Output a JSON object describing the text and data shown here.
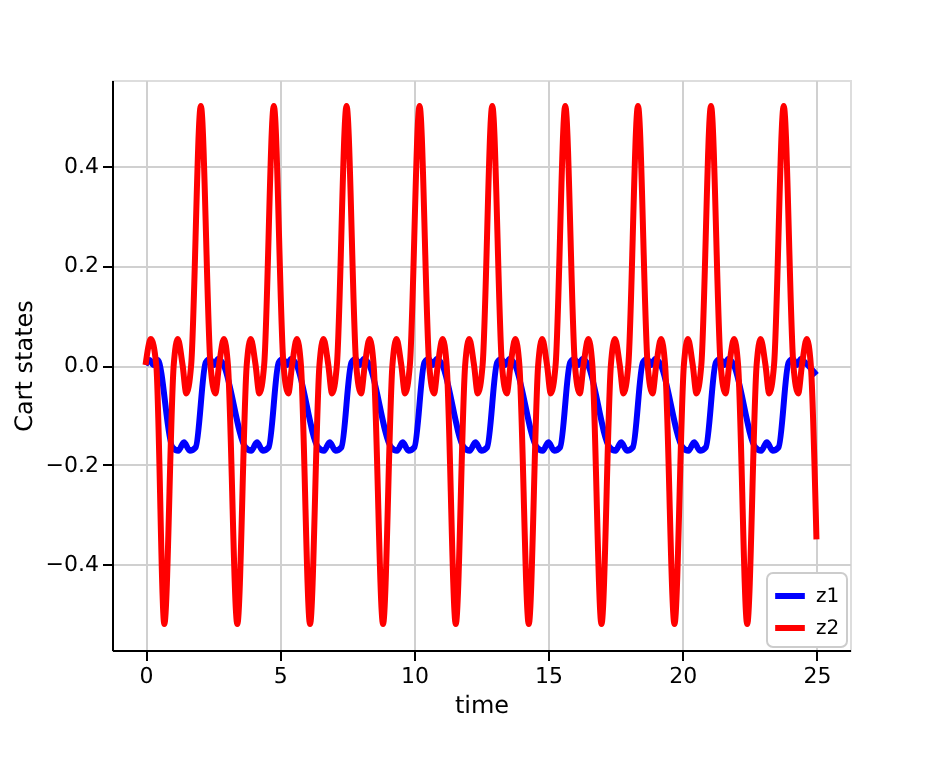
{
  "chart_data": {
    "type": "line",
    "xlabel": "time",
    "ylabel": "Cart states",
    "xlim": [
      -1.25,
      26.25
    ],
    "ylim": [
      -0.572,
      0.572
    ],
    "xticks": [
      0,
      5,
      10,
      15,
      20,
      25
    ],
    "yticks": [
      -0.4,
      -0.2,
      {
        "value": 0,
        "label": "0.0"
      },
      0.2,
      0.4
    ],
    "grid": true,
    "legend": "bottom right",
    "marker": "none",
    "line_style": "solid",
    "series": [
      {
        "name": "z1",
        "color": "#0000ff",
        "x": [
          0,
          0.15,
          0.3,
          0.45,
          1.0,
          1.22,
          1.43,
          1.65,
          1.87,
          2.24,
          2.4,
          2.55,
          2.7,
          2.86,
          3.72,
          3.94,
          4.15,
          4.37,
          4.59,
          4.96,
          5.12,
          5.27,
          5.42,
          5.58,
          6.43,
          6.65,
          6.86,
          7.08,
          7.3,
          7.67,
          7.83,
          7.98,
          8.13,
          8.29,
          9.15,
          9.37,
          9.58,
          9.8,
          10.02,
          10.39,
          10.55,
          10.7,
          10.85,
          11.01,
          11.86,
          12.08,
          12.29,
          12.51,
          12.73,
          13.1,
          13.26,
          13.41,
          13.56,
          13.72,
          14.58,
          14.8,
          15.01,
          15.23,
          15.45,
          15.82,
          15.98,
          16.13,
          16.28,
          16.44,
          17.29,
          17.51,
          17.72,
          17.94,
          18.16,
          18.53,
          18.69,
          18.84,
          18.99,
          19.15,
          20.01,
          20.23,
          20.44,
          20.66,
          20.88,
          21.25,
          21.41,
          21.56,
          21.71,
          21.87,
          22.72,
          22.94,
          23.15,
          23.37,
          23.59,
          23.96,
          24.12,
          24.27,
          24.42,
          24.58,
          25
        ],
        "values": [
          0,
          0.01,
          0.0,
          0.01,
          -0.165,
          -0.172,
          -0.155,
          -0.172,
          -0.165,
          0.005,
          0.012,
          0.0,
          0.012,
          0.005,
          -0.165,
          -0.172,
          -0.155,
          -0.172,
          -0.165,
          0.005,
          0.012,
          0.0,
          0.012,
          0.005,
          -0.165,
          -0.172,
          -0.155,
          -0.172,
          -0.165,
          0.005,
          0.012,
          0.0,
          0.012,
          0.005,
          -0.165,
          -0.172,
          -0.155,
          -0.172,
          -0.165,
          0.005,
          0.012,
          0.0,
          0.012,
          0.005,
          -0.165,
          -0.172,
          -0.155,
          -0.172,
          -0.165,
          0.005,
          0.012,
          0.0,
          0.012,
          0.005,
          -0.165,
          -0.172,
          -0.155,
          -0.172,
          -0.165,
          0.005,
          0.012,
          0.0,
          0.012,
          0.005,
          -0.165,
          -0.172,
          -0.155,
          -0.172,
          -0.165,
          0.005,
          0.012,
          0.0,
          0.012,
          0.005,
          -0.165,
          -0.172,
          -0.155,
          -0.172,
          -0.165,
          0.005,
          0.012,
          0.0,
          0.012,
          0.005,
          -0.165,
          -0.172,
          -0.155,
          -0.172,
          -0.165,
          0.005,
          0.012,
          0.0,
          0.012,
          0.005,
          -0.02
        ]
      },
      {
        "name": "z2",
        "color": "#ff0000",
        "x": [
          0,
          0.2,
          0.4,
          0.7,
          1.05,
          1.2,
          1.38,
          1.52,
          1.7,
          2.06,
          2.42,
          2.6,
          2.74,
          2.92,
          3.07,
          3.42,
          3.77,
          3.92,
          4.1,
          4.24,
          4.42,
          4.78,
          5.14,
          5.32,
          5.46,
          5.64,
          5.79,
          6.13,
          6.48,
          6.63,
          6.81,
          6.95,
          7.13,
          7.49,
          7.85,
          8.03,
          8.17,
          8.35,
          8.5,
          8.85,
          9.2,
          9.35,
          9.53,
          9.67,
          9.85,
          10.21,
          10.57,
          10.75,
          10.89,
          11.07,
          11.22,
          11.56,
          11.91,
          12.06,
          12.24,
          12.38,
          12.56,
          12.92,
          13.28,
          13.46,
          13.6,
          13.78,
          13.93,
          14.28,
          14.63,
          14.78,
          14.96,
          15.1,
          15.28,
          15.64,
          16.0,
          16.18,
          16.32,
          16.5,
          16.65,
          16.99,
          17.34,
          17.49,
          17.67,
          17.81,
          17.99,
          18.35,
          18.71,
          18.89,
          19.03,
          19.21,
          19.36,
          19.71,
          20.06,
          20.21,
          20.39,
          20.53,
          20.71,
          21.07,
          21.43,
          21.61,
          21.75,
          21.93,
          22.08,
          22.42,
          22.77,
          22.92,
          23.1,
          23.24,
          23.42,
          23.78,
          24.14,
          24.32,
          24.46,
          24.64,
          24.79,
          25
        ],
        "values": [
          0,
          0.052,
          0,
          -0.52,
          0,
          0.052,
          0,
          -0.057,
          0,
          0.52,
          0,
          -0.057,
          0,
          0.052,
          0,
          -0.52,
          0,
          0.052,
          0,
          -0.057,
          0,
          0.52,
          0,
          -0.057,
          0,
          0.052,
          0,
          -0.52,
          0,
          0.052,
          0,
          -0.057,
          0,
          0.52,
          0,
          -0.057,
          0,
          0.052,
          0,
          -0.52,
          0,
          0.052,
          0,
          -0.057,
          0,
          0.52,
          0,
          -0.057,
          0,
          0.052,
          0,
          -0.52,
          0,
          0.052,
          0,
          -0.057,
          0,
          0.52,
          0,
          -0.057,
          0,
          0.052,
          0,
          -0.52,
          0,
          0.052,
          0,
          -0.057,
          0,
          0.52,
          0,
          -0.057,
          0,
          0.052,
          0,
          -0.52,
          0,
          0.052,
          0,
          -0.057,
          0,
          0.52,
          0,
          -0.057,
          0,
          0.052,
          0,
          -0.52,
          0,
          0.052,
          0,
          -0.057,
          0,
          0.52,
          0,
          -0.057,
          0,
          0.052,
          0,
          -0.52,
          0,
          0.052,
          0,
          -0.057,
          0,
          0.52,
          0,
          -0.057,
          0,
          0.052,
          0,
          -0.35
        ]
      }
    ]
  }
}
